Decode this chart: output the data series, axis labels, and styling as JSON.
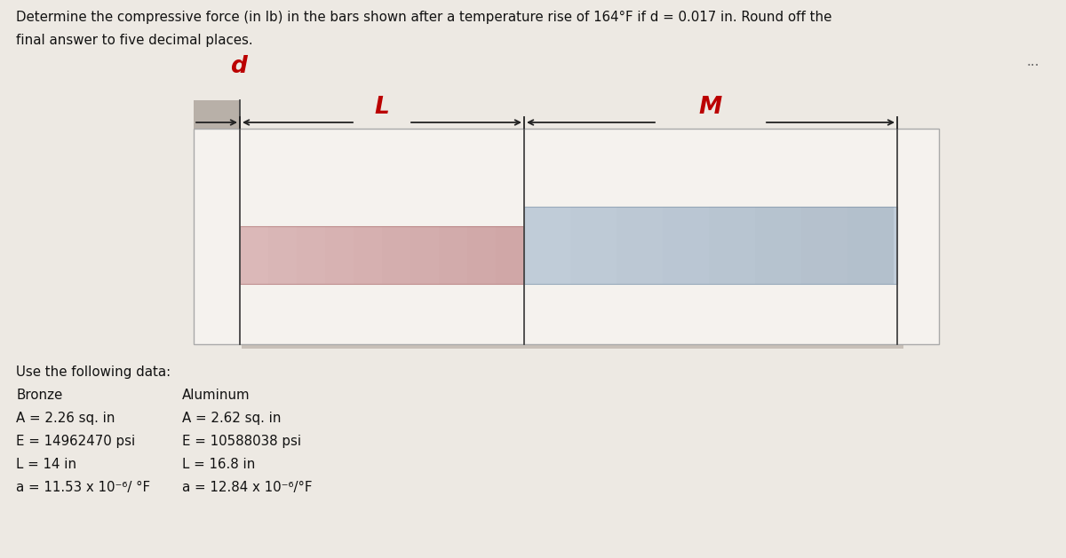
{
  "title_line1": "Determine the compressive force (in lb) in the bars shown after a temperature rise of 164°F if d = 0.017 in. Round off the",
  "title_line2": "final answer to five decimal places.",
  "bg_color": "#ede9e3",
  "box_inner_bg": "#f5f2ee",
  "label_color": "#bb0000",
  "arrow_color": "#222222",
  "bronze_color": "#dbb8b8",
  "bronze_edge": "#c09090",
  "aluminum_color": "#c0ccd8",
  "aluminum_edge": "#99aabb",
  "wall_color": "#b8b0a8",
  "dots": "...",
  "label_d": "d",
  "label_L": "L",
  "label_M": "M",
  "labels_left": [
    "Use the following data:",
    "Bronze",
    "A = 2.26 sq. in",
    "E = 14962470 psi",
    "L = 14 in",
    "a = 11.53 x 10⁻⁶/ °F"
  ],
  "labels_right": [
    "",
    "Aluminum",
    "A = 2.62 sq. in",
    "E = 10588038 psi",
    "L = 16.8 in",
    "a = 12.84 x 10⁻⁶/°F"
  ],
  "fig_width": 12.0,
  "fig_height": 6.29
}
